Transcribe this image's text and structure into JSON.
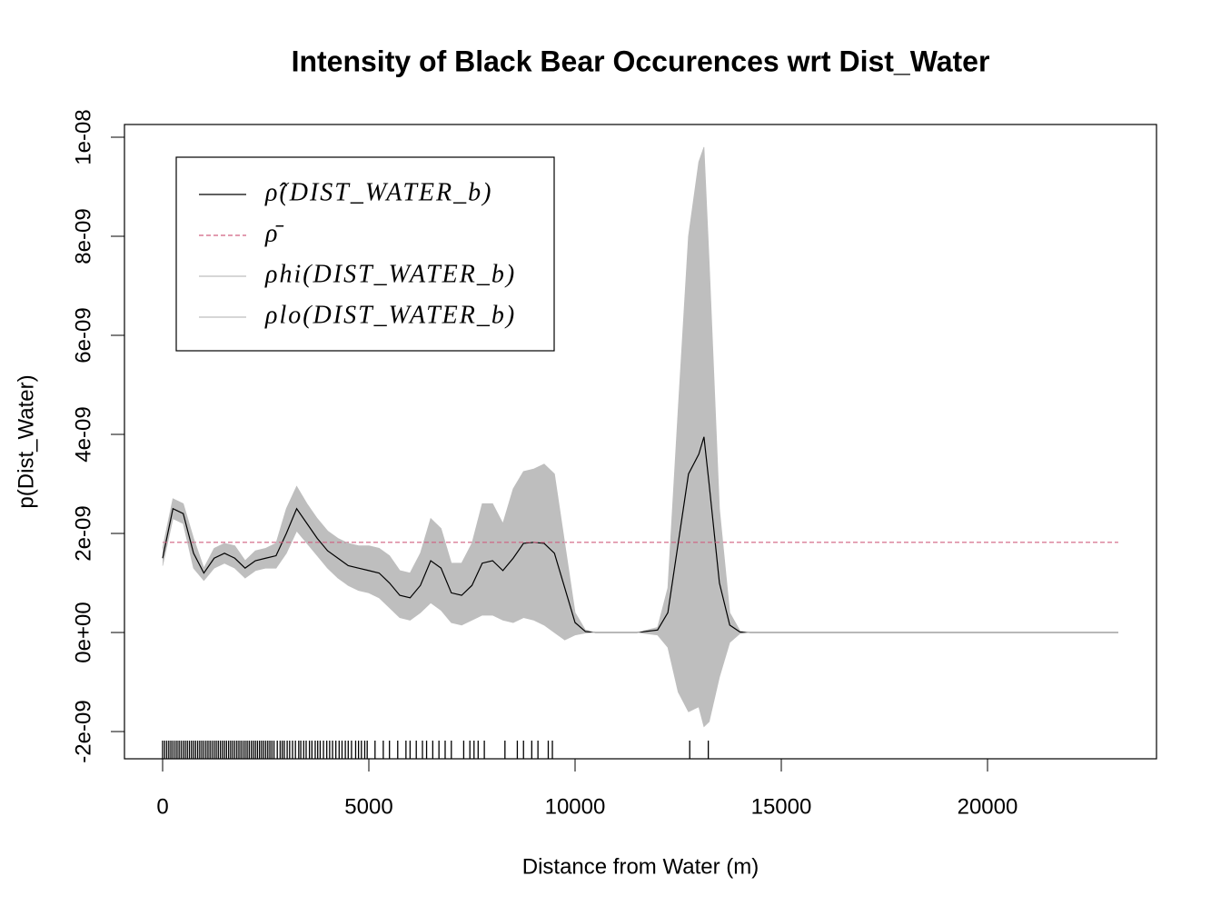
{
  "chart_data": {
    "type": "line",
    "title": "Intensity of Black Bear Occurences wrt Dist_Water",
    "x_label": "Distance from Water (m)",
    "y_label": "p(Dist_Water)",
    "xlim": [
      -925,
      24097
    ],
    "ylim": [
      -2.55e-09,
      1.0257e-08
    ],
    "xticks": [
      0,
      5000,
      10000,
      15000,
      20000
    ],
    "yticks": [
      {
        "value": -2e-09,
        "label": "-2e-09"
      },
      {
        "value": 0,
        "label": "0e+00"
      },
      {
        "value": 2e-09,
        "label": "2e-09"
      },
      {
        "value": 4e-09,
        "label": "4e-09"
      },
      {
        "value": 6e-09,
        "label": "6e-09"
      },
      {
        "value": 8e-09,
        "label": "8e-09"
      },
      {
        "value": 1e-08,
        "label": "1e-08"
      }
    ],
    "legend": "topleft",
    "x": [
      0,
      250,
      500,
      750,
      1000,
      1250,
      1500,
      1750,
      2000,
      2250,
      2500,
      2750,
      3000,
      3250,
      3500,
      3750,
      4000,
      4250,
      4500,
      4750,
      5000,
      5250,
      5500,
      5750,
      6000,
      6250,
      6500,
      6750,
      7000,
      7250,
      7500,
      7750,
      8000,
      8250,
      8500,
      8750,
      9000,
      9250,
      9500,
      9750,
      10000,
      10250,
      10500,
      11000,
      11500,
      12000,
      12250,
      12500,
      12750,
      13000,
      13125,
      13250,
      13500,
      13750,
      14000,
      14250,
      14500,
      23170
    ],
    "series": [
      {
        "name": "ρ̂(DIST_WATER_b)",
        "color": "#000000",
        "style": "solid",
        "values": [
          1.5e-09,
          2.5e-09,
          2.4e-09,
          1.6e-09,
          1.2e-09,
          1.5e-09,
          1.6e-09,
          1.5e-09,
          1.3e-09,
          1.45e-09,
          1.5e-09,
          1.55e-09,
          2e-09,
          2.5e-09,
          2.2e-09,
          1.9e-09,
          1.65e-09,
          1.5e-09,
          1.35e-09,
          1.3e-09,
          1.25e-09,
          1.2e-09,
          1e-09,
          7.5e-10,
          7e-10,
          9.5e-10,
          1.45e-09,
          1.3e-09,
          8e-10,
          7.5e-10,
          9.5e-10,
          1.4e-09,
          1.45e-09,
          1.25e-09,
          1.5e-09,
          1.8e-09,
          1.82e-09,
          1.8e-09,
          1.6e-09,
          9e-10,
          2e-10,
          2e-11,
          0,
          0,
          0,
          5e-11,
          4e-10,
          1.8e-09,
          3.2e-09,
          3.6e-09,
          3.95e-09,
          3e-09,
          1e-09,
          1.5e-10,
          1e-11,
          0,
          0,
          0
        ]
      },
      {
        "name": "ρ̄",
        "color": "#d06080",
        "style": "dashed",
        "x": [
          0,
          23170
        ],
        "values": [
          1.82e-09,
          1.82e-09
        ]
      },
      {
        "name": "ρhi(DIST_WATER_b)",
        "color": "#bebebe",
        "style": "band",
        "values": [
          1.7e-09,
          2.7e-09,
          2.6e-09,
          1.9e-09,
          1.3e-09,
          1.7e-09,
          1.8e-09,
          1.75e-09,
          1.45e-09,
          1.65e-09,
          1.7e-09,
          1.8e-09,
          2.5e-09,
          2.95e-09,
          2.6e-09,
          2.3e-09,
          2.05e-09,
          1.9e-09,
          1.8e-09,
          1.75e-09,
          1.75e-09,
          1.7e-09,
          1.55e-09,
          1.25e-09,
          1.2e-09,
          1.6e-09,
          2.3e-09,
          2.1e-09,
          1.4e-09,
          1.4e-09,
          1.8e-09,
          2.6e-09,
          2.6e-09,
          2.2e-09,
          2.9e-09,
          3.25e-09,
          3.3e-09,
          3.4e-09,
          3.2e-09,
          1.8e-09,
          4e-10,
          5e-11,
          0,
          0,
          0,
          1e-10,
          9e-10,
          4.5e-09,
          8e-09,
          9.5e-09,
          9.8e-09,
          7.5e-09,
          2.5e-09,
          4e-10,
          3e-11,
          0,
          0,
          0
        ]
      },
      {
        "name": "ρlo(DIST_WATER_b)",
        "color": "#bebebe",
        "style": "band",
        "values": [
          1.35e-09,
          2.3e-09,
          2.2e-09,
          1.3e-09,
          1.05e-09,
          1.3e-09,
          1.4e-09,
          1.3e-09,
          1.1e-09,
          1.25e-09,
          1.3e-09,
          1.3e-09,
          1.6e-09,
          2.05e-09,
          1.8e-09,
          1.55e-09,
          1.3e-09,
          1.1e-09,
          9.5e-10,
          8.5e-10,
          8e-10,
          7e-10,
          5e-10,
          3e-10,
          2.5e-10,
          4e-10,
          6e-10,
          4.5e-10,
          2e-10,
          1.5e-10,
          2.5e-10,
          3.5e-10,
          3.5e-10,
          2.5e-10,
          2e-10,
          3e-10,
          2.5e-10,
          1.5e-10,
          0,
          -1.5e-10,
          -5e-11,
          -1e-11,
          0,
          0,
          0,
          -5e-11,
          -3e-10,
          -1.2e-09,
          -1.6e-09,
          -1.5e-09,
          -1.9e-09,
          -1.8e-09,
          -9e-10,
          -2e-10,
          -2e-11,
          0,
          0,
          0
        ]
      }
    ],
    "rug": [
      0,
      50,
      100,
      150,
      200,
      250,
      300,
      350,
      400,
      450,
      500,
      550,
      600,
      650,
      700,
      750,
      800,
      850,
      900,
      950,
      1000,
      1050,
      1100,
      1150,
      1200,
      1250,
      1300,
      1350,
      1400,
      1450,
      1500,
      1550,
      1600,
      1650,
      1700,
      1750,
      1800,
      1850,
      1900,
      1950,
      2000,
      2050,
      2100,
      2150,
      2200,
      2250,
      2300,
      2350,
      2400,
      2450,
      2500,
      2550,
      2600,
      2650,
      2700,
      2780,
      2850,
      2900,
      2950,
      3020,
      3080,
      3150,
      3220,
      3300,
      3350,
      3420,
      3480,
      3560,
      3620,
      3700,
      3760,
      3820,
      3900,
      3980,
      4050,
      4120,
      4200,
      4280,
      4350,
      4430,
      4500,
      4580,
      4680,
      4750,
      4820,
      4900,
      4960,
      5150,
      5350,
      5500,
      5700,
      5900,
      6000,
      6150,
      6300,
      6400,
      6550,
      6700,
      6850,
      7000,
      7300,
      7450,
      7550,
      7650,
      7800,
      8300,
      8600,
      8750,
      8950,
      9100,
      9350,
      9450,
      12780,
      13230
    ]
  }
}
